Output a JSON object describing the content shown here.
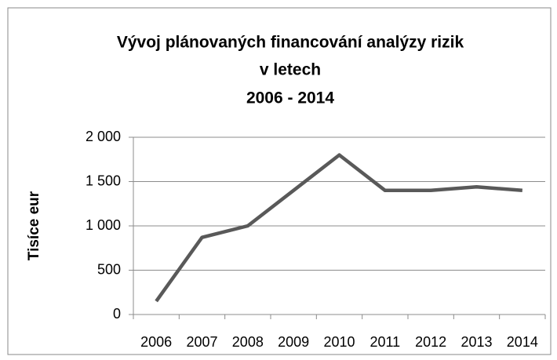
{
  "chart_data": {
    "type": "line",
    "title": [
      "Vývoj plánovaných financování analýzy rizik",
      "v letech",
      "2006 - 2014"
    ],
    "y_label": "Tisíce eur",
    "categories": [
      "2006",
      "2007",
      "2008",
      "2009",
      "2010",
      "2011",
      "2012",
      "2013",
      "2014"
    ],
    "values": [
      150,
      870,
      1000,
      1400,
      1800,
      1400,
      1400,
      1440,
      1400
    ],
    "color": "#595959",
    "ylim": [
      0,
      2000
    ],
    "yticks": [
      0,
      500,
      {
        "value": 1000,
        "label": "1 000"
      },
      {
        "value": 1500,
        "label": "1 500"
      },
      {
        "value": 2000,
        "label": "2 000"
      }
    ],
    "grid": true
  }
}
